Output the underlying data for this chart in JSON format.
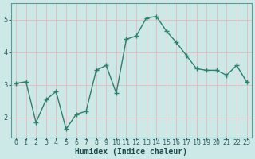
{
  "x": [
    0,
    1,
    2,
    3,
    4,
    5,
    6,
    7,
    8,
    9,
    10,
    11,
    12,
    13,
    14,
    15,
    16,
    17,
    18,
    19,
    20,
    21,
    22,
    23
  ],
  "y": [
    3.05,
    3.1,
    1.85,
    2.55,
    2.8,
    1.65,
    2.1,
    2.2,
    3.45,
    3.6,
    2.75,
    4.4,
    4.5,
    5.05,
    5.1,
    4.65,
    4.3,
    3.9,
    3.5,
    3.45,
    3.45,
    3.3,
    3.6,
    3.1
  ],
  "line_color": "#2d7f6e",
  "marker": "+",
  "bg_color": "#cce9e7",
  "grid_color_v": "#e8b8b8",
  "grid_color_h": "#e8b8b8",
  "xlabel": "Humidex (Indice chaleur)",
  "ylim": [
    1.4,
    5.5
  ],
  "yticks": [
    2,
    3,
    4,
    5
  ],
  "xtick_labels": [
    "0",
    "1",
    "2",
    "3",
    "4",
    "5",
    "6",
    "7",
    "8",
    "9",
    "10",
    "11",
    "12",
    "13",
    "14",
    "15",
    "16",
    "17",
    "18",
    "19",
    "20",
    "21",
    "22",
    "23"
  ],
  "axis_bg": "#cce9e7",
  "line_width": 1.0,
  "marker_size": 4,
  "xlabel_fontsize": 7,
  "tick_fontsize": 6
}
